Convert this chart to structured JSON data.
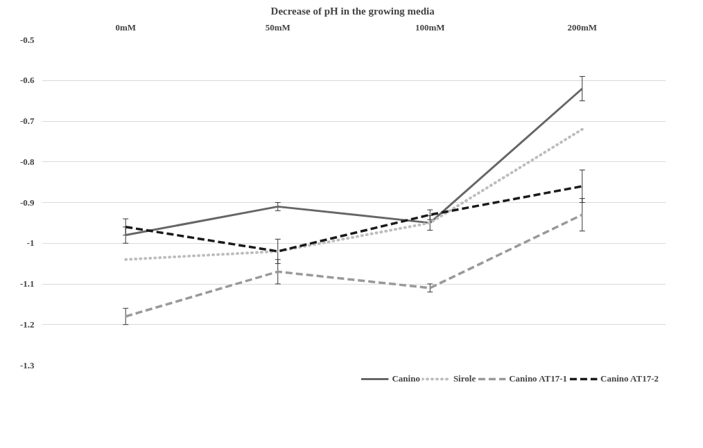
{
  "chart_data": {
    "type": "line",
    "title": "Decrease of pH in the growing  media",
    "categories": [
      "0mM",
      "50mM",
      "100mM",
      "200mM"
    ],
    "series": [
      {
        "name": "Canino",
        "color": "#666666",
        "line_style": "solid",
        "values": [
          -0.98,
          -0.91,
          -0.95,
          -0.62
        ],
        "errors": [
          0.02,
          0.01,
          0.018,
          0.03
        ]
      },
      {
        "name": "Sirole",
        "color": "#bdbdbd",
        "line_style": "dotted",
        "values": [
          -1.04,
          -1.02,
          -0.95,
          -0.72
        ]
      },
      {
        "name": "Canino AT17-1",
        "color": "#999999",
        "line_style": "dashed",
        "values": [
          -1.18,
          -1.07,
          -1.11,
          -0.93
        ],
        "errors": [
          0.02,
          0.03,
          0.01,
          0.04
        ]
      },
      {
        "name": "Canino AT17-2",
        "color": "#1a1a1a",
        "line_style": "dashed",
        "values": [
          -0.96,
          -1.02,
          -0.93,
          -0.86
        ],
        "errors": [
          0.02,
          0.03,
          0.012,
          0.04
        ]
      }
    ],
    "ylim": [
      -1.3,
      -0.5
    ],
    "yticks": [
      -0.5,
      -0.6,
      -0.7,
      -0.8,
      -0.9,
      -1,
      -1.1,
      -1.2,
      -1.3
    ],
    "grid": "y",
    "legend": "bottom"
  }
}
